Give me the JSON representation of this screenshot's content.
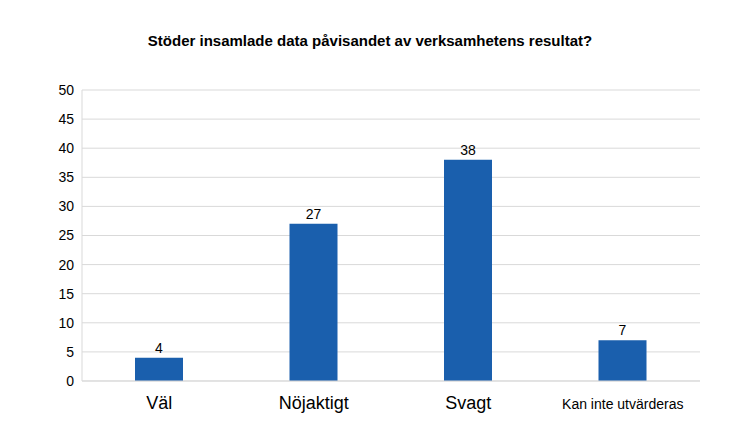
{
  "chart_data": {
    "type": "bar",
    "title": "Stöder insamlade data påvisandet av verksamhetens resultat?",
    "categories": [
      "Väl",
      "Nöjaktigt",
      "Svagt",
      "Kan inte utvärderas"
    ],
    "values": [
      4,
      27,
      38,
      7
    ],
    "color": "#1a5fad",
    "ylim": [
      0,
      50
    ],
    "yticks": [
      0,
      5,
      10,
      15,
      20,
      25,
      30,
      35,
      40,
      45,
      50
    ],
    "grid": true,
    "data_labels": true
  }
}
